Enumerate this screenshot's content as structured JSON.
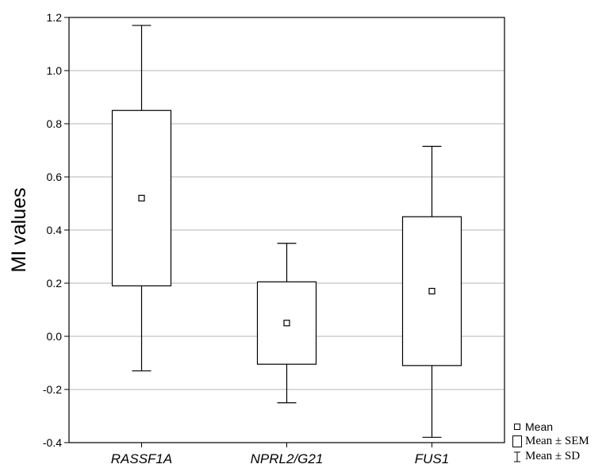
{
  "chart_data": {
    "type": "box",
    "title": "",
    "xlabel": "",
    "ylabel": "MI values",
    "ylim": [
      -0.4,
      1.2
    ],
    "yticks": [
      "-0.4",
      "-0.2",
      "0.0",
      "0.2",
      "0.4",
      "0.6",
      "0.8",
      "1.0",
      "1.2"
    ],
    "grid": true,
    "legend_position": "bottom-right, outside plot",
    "categories": [
      "RASSF1A",
      "NPRL2/G21",
      "FUS1"
    ],
    "series": [
      {
        "category": "RASSF1A",
        "mean": 0.52,
        "sem_low": 0.19,
        "sem_high": 0.85,
        "sd_low": -0.13,
        "sd_high": 1.17
      },
      {
        "category": "NPRL2/G21",
        "mean": 0.05,
        "sem_low": -0.105,
        "sem_high": 0.205,
        "sd_low": -0.25,
        "sd_high": 0.35
      },
      {
        "category": "FUS1",
        "mean": 0.17,
        "sem_low": -0.11,
        "sem_high": 0.45,
        "sd_low": -0.38,
        "sd_high": 0.715
      }
    ],
    "legend": [
      {
        "symbol": "mean-marker",
        "label": "Mean"
      },
      {
        "symbol": "sem-box",
        "label": "Mean ± SEM"
      },
      {
        "symbol": "sd-whisker",
        "label": "Mean ± SD"
      }
    ],
    "colors": {
      "line": "#000000",
      "grid": "#b4b4b4",
      "box_fill": "#ffffff"
    }
  }
}
